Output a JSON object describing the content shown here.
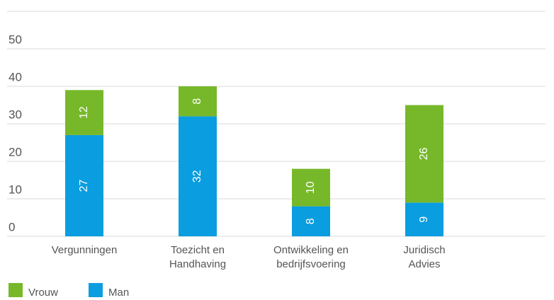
{
  "chart_data": {
    "type": "stacked_bar",
    "categories": [
      "Vergunningen",
      "Toezicht en\nHandhaving",
      "Ontwikkeling en\nbedrijfsvoering",
      "Juridisch\nAdvies"
    ],
    "series": [
      {
        "name": "Vrouw",
        "color": "#77b82a",
        "values": [
          12,
          8,
          10,
          26
        ]
      },
      {
        "name": "Man",
        "color": "#0a9de0",
        "values": [
          27,
          32,
          8,
          9
        ]
      }
    ],
    "ylim": [
      0,
      60
    ],
    "yticks": [
      0,
      10,
      20,
      30,
      40,
      50
    ],
    "grid": true
  }
}
